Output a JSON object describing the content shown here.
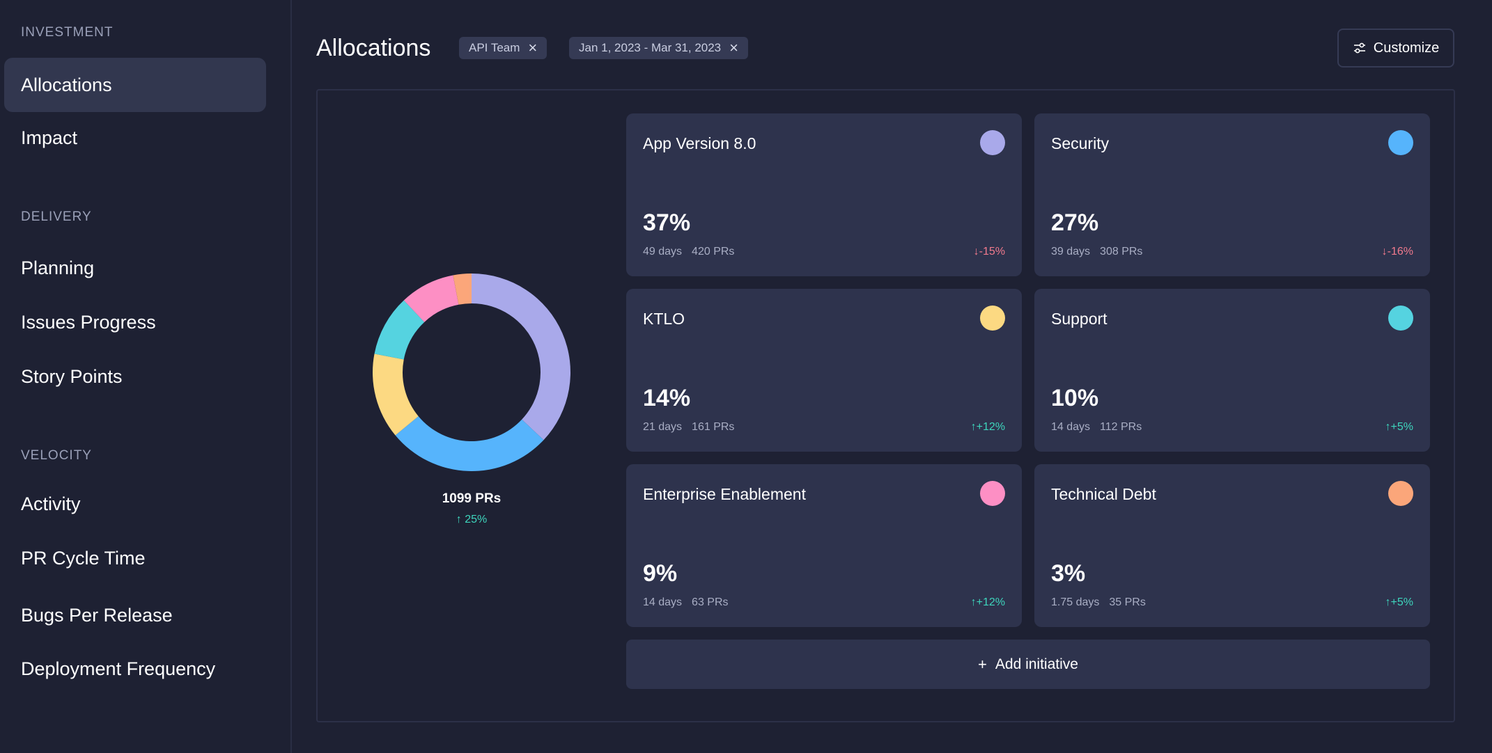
{
  "sidebar": {
    "sections": [
      {
        "title": "INVESTMENT",
        "items": [
          {
            "label": "Allocations",
            "active": true
          },
          {
            "label": "Impact"
          }
        ]
      },
      {
        "title": "DELIVERY",
        "items": [
          {
            "label": "Planning"
          },
          {
            "label": "Issues Progress"
          },
          {
            "label": "Story Points"
          }
        ]
      },
      {
        "title": "VELOCITY",
        "items": [
          {
            "label": "Activity"
          },
          {
            "label": "PR Cycle Time"
          },
          {
            "label": "Bugs Per Release"
          },
          {
            "label": "Deployment Frequency"
          }
        ]
      }
    ]
  },
  "header": {
    "title": "Allocations",
    "filters": [
      {
        "label": "API Team"
      },
      {
        "label": "Jan 1, 2023 - Mar 31, 2023"
      }
    ],
    "customize_label": "Customize"
  },
  "summary": {
    "total_prs": "1099 PRs",
    "delta": "↑ 25%"
  },
  "initiatives": [
    {
      "name": "App Version 8.0",
      "percent": "37%",
      "days": "49 days",
      "prs": "420 PRs",
      "delta": "↓-15%",
      "trend": "down",
      "color": "#a9a9ea"
    },
    {
      "name": "Security",
      "percent": "27%",
      "days": "39 days",
      "prs": "308 PRs",
      "delta": "↓-16%",
      "trend": "down",
      "color": "#56b4fc"
    },
    {
      "name": "KTLO",
      "percent": "14%",
      "days": "21 days",
      "prs": "161 PRs",
      "delta": "↑+12%",
      "trend": "up",
      "color": "#fcd982"
    },
    {
      "name": "Support",
      "percent": "10%",
      "days": "14 days",
      "prs": "112 PRs",
      "delta": "↑+5%",
      "trend": "up",
      "color": "#55d3e0"
    },
    {
      "name": "Enterprise Enablement",
      "percent": "9%",
      "days": "14 days",
      "prs": "63 PRs",
      "delta": "↑+12%",
      "trend": "up",
      "color": "#fd8fc4"
    },
    {
      "name": "Technical Debt",
      "percent": "3%",
      "days": "1.75 days",
      "prs": "35 PRs",
      "delta": "↑+5%",
      "trend": "up",
      "color": "#fba67a"
    }
  ],
  "chart_data": {
    "type": "pie",
    "labels": [
      "App Version 8.0",
      "Security",
      "KTLO",
      "Support",
      "Enterprise Enablement",
      "Technical Debt"
    ],
    "values": [
      37,
      27,
      14,
      10,
      9,
      3
    ],
    "colors": [
      "#a9a9ea",
      "#56b4fc",
      "#fcd982",
      "#55d3e0",
      "#fd8fc4",
      "#fba67a"
    ]
  },
  "add_initiative_label": "Add initiative"
}
